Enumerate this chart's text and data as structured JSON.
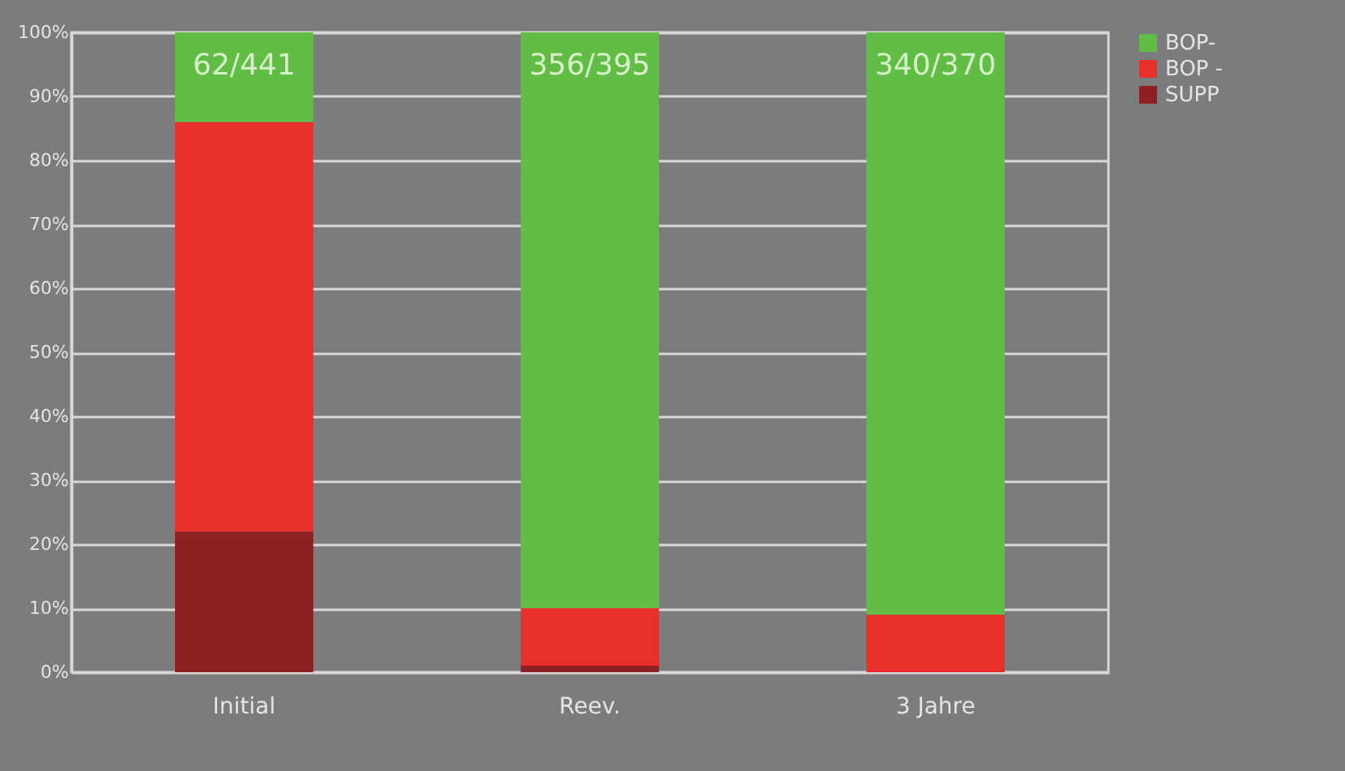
{
  "chart_data": {
    "type": "bar",
    "stacked": true,
    "categories": [
      "Initial",
      "Reev.",
      "3 Jahre"
    ],
    "series": [
      {
        "name": "SUPP",
        "color": "#8e2023",
        "values": [
          22,
          1,
          0
        ]
      },
      {
        "name": "BOP -",
        "color": "#e8302a",
        "values": [
          64,
          9,
          9
        ]
      },
      {
        "name": "BOP-",
        "color": "#62bd47",
        "values": [
          14,
          90,
          91
        ],
        "value_labels": [
          "62/441",
          "356/395",
          "340/370"
        ]
      }
    ],
    "ylim": [
      0,
      100
    ],
    "yticks": [
      {
        "value": 0,
        "label": "0%"
      },
      {
        "value": 10,
        "label": "10%"
      },
      {
        "value": 20,
        "label": "20%"
      },
      {
        "value": 30,
        "label": "30%"
      },
      {
        "value": 40,
        "label": "40%"
      },
      {
        "value": 50,
        "label": "50%"
      },
      {
        "value": 60,
        "label": "60%"
      },
      {
        "value": 70,
        "label": "70%"
      },
      {
        "value": 80,
        "label": "80%"
      },
      {
        "value": 90,
        "label": "90%"
      },
      {
        "value": 100,
        "label": "100%"
      }
    ],
    "grid": true,
    "legend": "right"
  }
}
